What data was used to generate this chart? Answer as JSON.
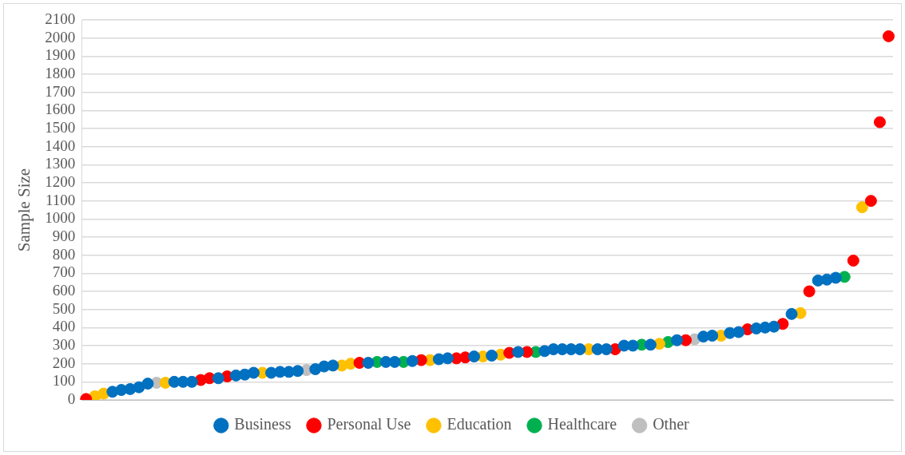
{
  "chart_data": {
    "type": "scatter",
    "ylabel": "Sample Size",
    "categories": [
      null,
      null,
      null,
      null,
      null,
      null,
      null,
      null,
      null,
      null,
      null,
      null,
      null,
      null,
      null,
      null,
      null,
      null,
      null,
      null,
      null,
      null,
      null,
      null,
      null,
      null,
      null,
      null,
      null,
      null,
      null,
      null,
      null,
      null,
      null,
      null,
      null,
      null,
      null,
      null,
      null,
      null,
      null,
      null,
      null,
      null,
      null,
      null,
      null,
      null,
      null,
      null,
      null,
      null,
      null,
      null,
      null,
      null,
      null,
      null,
      null,
      null,
      null,
      null,
      null,
      null,
      null,
      null,
      null,
      null,
      null,
      null,
      null,
      null,
      null,
      null,
      null,
      null,
      null,
      null,
      null,
      null,
      null,
      null,
      null,
      null,
      null,
      null,
      null,
      null,
      null,
      null
    ],
    "series": [
      {
        "name": "Business",
        "color": "#0070c0",
        "values": [
          null,
          null,
          null,
          45,
          55,
          60,
          70,
          90,
          null,
          null,
          100,
          100,
          100,
          null,
          null,
          120,
          null,
          135,
          140,
          150,
          null,
          150,
          155,
          155,
          160,
          null,
          170,
          185,
          190,
          null,
          null,
          null,
          205,
          null,
          210,
          210,
          null,
          215,
          null,
          null,
          225,
          230,
          null,
          null,
          240,
          null,
          245,
          null,
          null,
          265,
          null,
          null,
          270,
          280,
          280,
          280,
          280,
          null,
          280,
          280,
          null,
          300,
          300,
          null,
          305,
          null,
          null,
          330,
          null,
          null,
          350,
          355,
          null,
          370,
          375,
          null,
          395,
          400,
          405,
          null,
          475,
          null,
          null,
          660,
          665,
          675,
          null,
          null,
          null,
          null,
          null,
          null
        ]
      },
      {
        "name": "Personal Use",
        "color": "#ff0000",
        "values": [
          5,
          null,
          null,
          null,
          null,
          null,
          null,
          null,
          null,
          null,
          null,
          null,
          null,
          110,
          120,
          null,
          130,
          null,
          null,
          null,
          null,
          null,
          null,
          null,
          null,
          null,
          null,
          null,
          null,
          null,
          null,
          205,
          null,
          null,
          null,
          null,
          null,
          null,
          220,
          null,
          null,
          null,
          230,
          235,
          null,
          null,
          null,
          null,
          260,
          null,
          265,
          null,
          null,
          null,
          null,
          null,
          null,
          null,
          null,
          null,
          280,
          null,
          null,
          null,
          null,
          null,
          null,
          null,
          330,
          null,
          null,
          null,
          null,
          null,
          null,
          390,
          null,
          null,
          null,
          420,
          null,
          null,
          600,
          null,
          null,
          null,
          null,
          770,
          null,
          1100,
          1535,
          2010
        ]
      },
      {
        "name": "Education",
        "color": "#ffc000",
        "values": [
          null,
          20,
          35,
          null,
          null,
          null,
          null,
          null,
          null,
          95,
          null,
          null,
          null,
          null,
          null,
          null,
          null,
          null,
          null,
          null,
          150,
          null,
          null,
          null,
          null,
          null,
          null,
          null,
          null,
          190,
          200,
          null,
          null,
          null,
          null,
          null,
          null,
          null,
          null,
          220,
          null,
          null,
          null,
          null,
          null,
          240,
          null,
          250,
          null,
          null,
          null,
          null,
          null,
          null,
          null,
          null,
          null,
          280,
          null,
          null,
          null,
          null,
          null,
          null,
          null,
          310,
          null,
          null,
          null,
          null,
          null,
          null,
          355,
          null,
          null,
          null,
          null,
          null,
          null,
          null,
          null,
          480,
          null,
          null,
          null,
          null,
          null,
          null,
          1065,
          null,
          null,
          null
        ]
      },
      {
        "name": "Healthcare",
        "color": "#00b050",
        "values": [
          null,
          null,
          null,
          null,
          null,
          null,
          null,
          null,
          null,
          null,
          null,
          null,
          null,
          null,
          null,
          null,
          null,
          null,
          null,
          null,
          null,
          null,
          null,
          null,
          null,
          null,
          null,
          null,
          null,
          null,
          null,
          null,
          null,
          210,
          null,
          null,
          210,
          null,
          null,
          null,
          null,
          null,
          null,
          null,
          null,
          null,
          null,
          null,
          null,
          null,
          null,
          265,
          null,
          null,
          null,
          null,
          null,
          null,
          null,
          null,
          null,
          null,
          null,
          305,
          null,
          null,
          320,
          null,
          null,
          null,
          null,
          null,
          null,
          null,
          null,
          null,
          null,
          null,
          null,
          null,
          null,
          null,
          null,
          null,
          null,
          null,
          680,
          null,
          null,
          null,
          null,
          null
        ]
      },
      {
        "name": "Other",
        "color": "#bfbfbf",
        "values": [
          null,
          null,
          null,
          null,
          null,
          null,
          null,
          null,
          95,
          null,
          null,
          null,
          null,
          null,
          null,
          null,
          null,
          null,
          null,
          null,
          null,
          null,
          null,
          null,
          null,
          165,
          null,
          null,
          null,
          null,
          null,
          null,
          null,
          null,
          null,
          null,
          null,
          null,
          null,
          null,
          null,
          null,
          null,
          null,
          null,
          null,
          null,
          null,
          null,
          null,
          null,
          null,
          null,
          null,
          null,
          null,
          null,
          null,
          null,
          null,
          null,
          null,
          null,
          null,
          null,
          null,
          null,
          null,
          null,
          335,
          null,
          null,
          null,
          null,
          null,
          null,
          null,
          null,
          null,
          null,
          null,
          null,
          null,
          null,
          null,
          null,
          null,
          null,
          null,
          null,
          null,
          null
        ]
      }
    ],
    "ylim": [
      0,
      2100
    ],
    "yticks": [
      0,
      100,
      200,
      300,
      400,
      500,
      600,
      700,
      800,
      900,
      1000,
      1100,
      1200,
      1300,
      1400,
      1500,
      1600,
      1700,
      1800,
      1900,
      2000,
      2100
    ],
    "grid": "y",
    "legend": "bottom",
    "tick_labels": "y",
    "marker": "circle"
  }
}
